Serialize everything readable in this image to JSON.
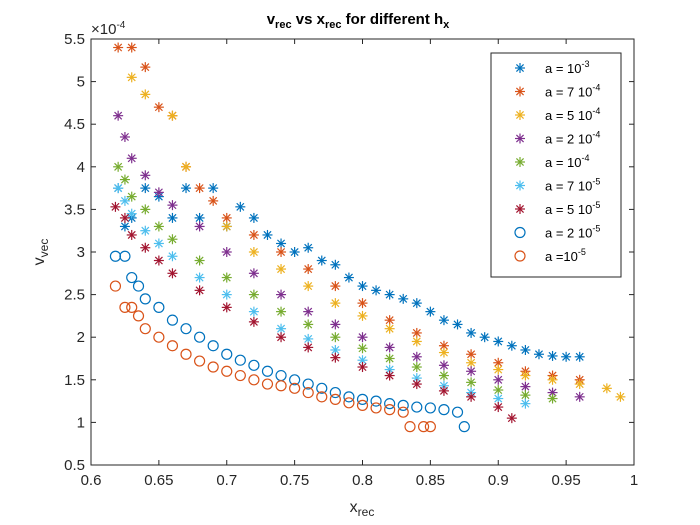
{
  "chart_data": {
    "type": "scatter",
    "title": {
      "base1": "v",
      "sub1": "rec",
      "mid": " vs x",
      "sub2": "rec",
      "tail": " for different h",
      "sub3": "x"
    },
    "xlabel": {
      "base": "x",
      "sub": "rec"
    },
    "ylabel": {
      "base": "v",
      "sub": "vec"
    },
    "exponent_label": {
      "base": "×10",
      "sup": "-4"
    },
    "xlim": [
      0.6,
      1.0
    ],
    "ylim": [
      0.5,
      5.5
    ],
    "xticks": [
      "0.6",
      "0.65",
      "0.7",
      "0.75",
      "0.8",
      "0.85",
      "0.9",
      "0.95",
      "1"
    ],
    "yticks": [
      "0.5",
      "1",
      "1.5",
      "2",
      "2.5",
      "3",
      "3.5",
      "4",
      "4.5",
      "5",
      "5.5"
    ],
    "grid": false,
    "legend_position": "top-right",
    "series": [
      {
        "label": {
          "base": "a = 10",
          "sup": "-3"
        },
        "marker": "star",
        "color": "#0072BD",
        "points": [
          [
            0.62,
            3.75
          ],
          [
            0.625,
            3.3
          ],
          [
            0.63,
            3.4
          ],
          [
            0.64,
            3.75
          ],
          [
            0.65,
            3.65
          ],
          [
            0.66,
            3.4
          ],
          [
            0.67,
            3.75
          ],
          [
            0.68,
            3.4
          ],
          [
            0.69,
            3.75
          ],
          [
            0.7,
            3.3
          ],
          [
            0.71,
            3.53
          ],
          [
            0.72,
            3.4
          ],
          [
            0.73,
            3.2
          ],
          [
            0.74,
            3.1
          ],
          [
            0.75,
            3.0
          ],
          [
            0.76,
            3.05
          ],
          [
            0.77,
            2.9
          ],
          [
            0.78,
            2.85
          ],
          [
            0.79,
            2.7
          ],
          [
            0.8,
            2.6
          ],
          [
            0.81,
            2.55
          ],
          [
            0.82,
            2.5
          ],
          [
            0.83,
            2.45
          ],
          [
            0.84,
            2.4
          ],
          [
            0.85,
            2.3
          ],
          [
            0.86,
            2.2
          ],
          [
            0.87,
            2.15
          ],
          [
            0.88,
            2.05
          ],
          [
            0.89,
            2.0
          ],
          [
            0.9,
            1.95
          ],
          [
            0.91,
            1.9
          ],
          [
            0.92,
            1.85
          ],
          [
            0.93,
            1.8
          ],
          [
            0.94,
            1.78
          ],
          [
            0.95,
            1.77
          ],
          [
            0.96,
            1.77
          ]
        ]
      },
      {
        "label": {
          "base": "a = 7 10",
          "sup": "-4"
        },
        "marker": "star",
        "color": "#D95319",
        "points": [
          [
            0.62,
            5.4
          ],
          [
            0.63,
            5.4
          ],
          [
            0.64,
            5.17
          ],
          [
            0.65,
            4.7
          ],
          [
            0.66,
            4.6
          ],
          [
            0.67,
            4.0
          ],
          [
            0.68,
            3.75
          ],
          [
            0.69,
            3.6
          ],
          [
            0.7,
            3.4
          ],
          [
            0.72,
            3.2
          ],
          [
            0.74,
            3.0
          ],
          [
            0.76,
            2.8
          ],
          [
            0.78,
            2.6
          ],
          [
            0.8,
            2.4
          ],
          [
            0.82,
            2.2
          ],
          [
            0.84,
            2.05
          ],
          [
            0.86,
            1.9
          ],
          [
            0.88,
            1.8
          ],
          [
            0.9,
            1.7
          ],
          [
            0.92,
            1.6
          ],
          [
            0.94,
            1.55
          ],
          [
            0.96,
            1.5
          ]
        ]
      },
      {
        "label": {
          "base": "a = 5 10",
          "sup": "-4"
        },
        "marker": "star",
        "color": "#EDB120",
        "points": [
          [
            0.63,
            5.05
          ],
          [
            0.64,
            4.85
          ],
          [
            0.66,
            4.6
          ],
          [
            0.67,
            4.0
          ],
          [
            0.7,
            3.3
          ],
          [
            0.72,
            3.0
          ],
          [
            0.74,
            2.8
          ],
          [
            0.76,
            2.6
          ],
          [
            0.78,
            2.4
          ],
          [
            0.8,
            2.25
          ],
          [
            0.82,
            2.1
          ],
          [
            0.84,
            1.95
          ],
          [
            0.86,
            1.82
          ],
          [
            0.88,
            1.7
          ],
          [
            0.9,
            1.62
          ],
          [
            0.92,
            1.55
          ],
          [
            0.94,
            1.5
          ],
          [
            0.96,
            1.45
          ],
          [
            0.98,
            1.4
          ],
          [
            0.99,
            1.3
          ]
        ]
      },
      {
        "label": {
          "base": "a = 2 10",
          "sup": "-4"
        },
        "marker": "star",
        "color": "#7E2F8E",
        "points": [
          [
            0.62,
            4.6
          ],
          [
            0.625,
            4.35
          ],
          [
            0.63,
            4.1
          ],
          [
            0.64,
            3.9
          ],
          [
            0.65,
            3.7
          ],
          [
            0.66,
            3.55
          ],
          [
            0.68,
            3.3
          ],
          [
            0.7,
            3.0
          ],
          [
            0.72,
            2.75
          ],
          [
            0.74,
            2.5
          ],
          [
            0.76,
            2.3
          ],
          [
            0.78,
            2.15
          ],
          [
            0.8,
            2.0
          ],
          [
            0.82,
            1.88
          ],
          [
            0.84,
            1.77
          ],
          [
            0.86,
            1.67
          ],
          [
            0.88,
            1.6
          ],
          [
            0.9,
            1.5
          ],
          [
            0.92,
            1.42
          ],
          [
            0.94,
            1.35
          ],
          [
            0.96,
            1.3
          ]
        ]
      },
      {
        "label": {
          "base": "a = 10",
          "sup": "-4"
        },
        "marker": "star",
        "color": "#77AC30",
        "points": [
          [
            0.62,
            4.0
          ],
          [
            0.625,
            3.85
          ],
          [
            0.63,
            3.65
          ],
          [
            0.64,
            3.5
          ],
          [
            0.65,
            3.3
          ],
          [
            0.66,
            3.15
          ],
          [
            0.68,
            2.9
          ],
          [
            0.7,
            2.7
          ],
          [
            0.72,
            2.5
          ],
          [
            0.74,
            2.3
          ],
          [
            0.76,
            2.15
          ],
          [
            0.78,
            2.0
          ],
          [
            0.8,
            1.87
          ],
          [
            0.82,
            1.75
          ],
          [
            0.84,
            1.65
          ],
          [
            0.86,
            1.55
          ],
          [
            0.88,
            1.47
          ],
          [
            0.9,
            1.38
          ],
          [
            0.92,
            1.32
          ],
          [
            0.94,
            1.28
          ]
        ]
      },
      {
        "label": {
          "base": "a = 7 10",
          "sup": "-5"
        },
        "marker": "star",
        "color": "#4DBEEE",
        "points": [
          [
            0.62,
            3.75
          ],
          [
            0.625,
            3.6
          ],
          [
            0.63,
            3.45
          ],
          [
            0.64,
            3.25
          ],
          [
            0.65,
            3.1
          ],
          [
            0.66,
            2.95
          ],
          [
            0.68,
            2.7
          ],
          [
            0.7,
            2.5
          ],
          [
            0.72,
            2.3
          ],
          [
            0.74,
            2.1
          ],
          [
            0.76,
            1.98
          ],
          [
            0.78,
            1.85
          ],
          [
            0.8,
            1.73
          ],
          [
            0.82,
            1.62
          ],
          [
            0.84,
            1.52
          ],
          [
            0.86,
            1.43
          ],
          [
            0.88,
            1.35
          ],
          [
            0.9,
            1.28
          ],
          [
            0.92,
            1.22
          ]
        ]
      },
      {
        "label": {
          "base": "a = 5 10",
          "sup": "-5"
        },
        "marker": "star",
        "color": "#A2142F",
        "points": [
          [
            0.618,
            3.53
          ],
          [
            0.625,
            3.4
          ],
          [
            0.63,
            3.2
          ],
          [
            0.64,
            3.05
          ],
          [
            0.65,
            2.9
          ],
          [
            0.66,
            2.75
          ],
          [
            0.68,
            2.55
          ],
          [
            0.7,
            2.35
          ],
          [
            0.72,
            2.18
          ],
          [
            0.74,
            2.0
          ],
          [
            0.76,
            1.88
          ],
          [
            0.78,
            1.76
          ],
          [
            0.8,
            1.65
          ],
          [
            0.82,
            1.55
          ],
          [
            0.84,
            1.45
          ],
          [
            0.86,
            1.37
          ],
          [
            0.88,
            1.3
          ],
          [
            0.9,
            1.18
          ],
          [
            0.91,
            1.05
          ]
        ]
      },
      {
        "label": {
          "base": "a = 2 10",
          "sup": "-5"
        },
        "marker": "circle",
        "color": "#0072BD",
        "points": [
          [
            0.618,
            2.95
          ],
          [
            0.625,
            2.95
          ],
          [
            0.63,
            2.7
          ],
          [
            0.635,
            2.6
          ],
          [
            0.64,
            2.45
          ],
          [
            0.65,
            2.35
          ],
          [
            0.66,
            2.2
          ],
          [
            0.67,
            2.1
          ],
          [
            0.68,
            2.0
          ],
          [
            0.69,
            1.9
          ],
          [
            0.7,
            1.8
          ],
          [
            0.71,
            1.73
          ],
          [
            0.72,
            1.67
          ],
          [
            0.73,
            1.6
          ],
          [
            0.74,
            1.55
          ],
          [
            0.75,
            1.5
          ],
          [
            0.76,
            1.45
          ],
          [
            0.77,
            1.4
          ],
          [
            0.78,
            1.35
          ],
          [
            0.79,
            1.3
          ],
          [
            0.8,
            1.27
          ],
          [
            0.81,
            1.25
          ],
          [
            0.82,
            1.22
          ],
          [
            0.83,
            1.2
          ],
          [
            0.84,
            1.18
          ],
          [
            0.85,
            1.17
          ],
          [
            0.86,
            1.15
          ],
          [
            0.87,
            1.12
          ],
          [
            0.875,
            0.95
          ]
        ]
      },
      {
        "label": {
          "base": "a =10",
          "sup": "-5"
        },
        "marker": "circle",
        "color": "#D95319",
        "points": [
          [
            0.618,
            2.6
          ],
          [
            0.625,
            2.35
          ],
          [
            0.63,
            2.35
          ],
          [
            0.635,
            2.25
          ],
          [
            0.64,
            2.1
          ],
          [
            0.65,
            2.0
          ],
          [
            0.66,
            1.9
          ],
          [
            0.67,
            1.8
          ],
          [
            0.68,
            1.72
          ],
          [
            0.69,
            1.65
          ],
          [
            0.7,
            1.6
          ],
          [
            0.71,
            1.55
          ],
          [
            0.72,
            1.5
          ],
          [
            0.73,
            1.45
          ],
          [
            0.74,
            1.43
          ],
          [
            0.75,
            1.4
          ],
          [
            0.76,
            1.35
          ],
          [
            0.77,
            1.3
          ],
          [
            0.78,
            1.27
          ],
          [
            0.79,
            1.23
          ],
          [
            0.8,
            1.2
          ],
          [
            0.81,
            1.17
          ],
          [
            0.82,
            1.15
          ],
          [
            0.83,
            1.12
          ],
          [
            0.835,
            0.95
          ],
          [
            0.845,
            0.95
          ],
          [
            0.85,
            0.95
          ]
        ]
      }
    ]
  }
}
